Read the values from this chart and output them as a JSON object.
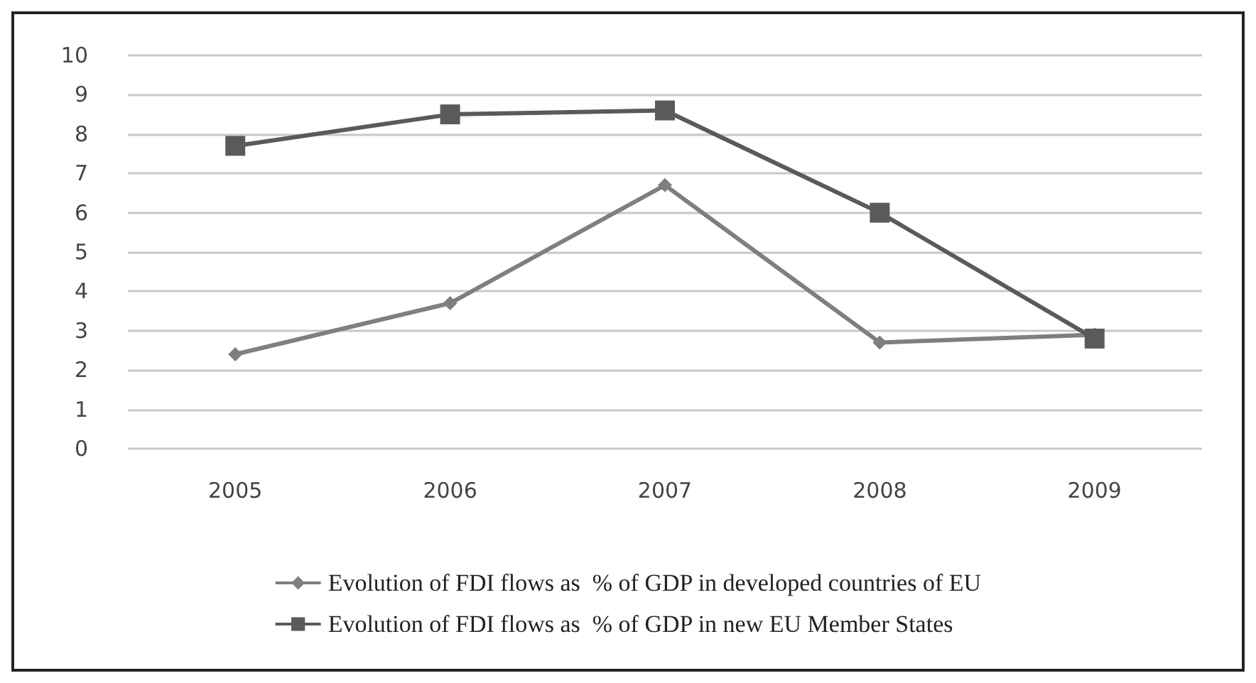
{
  "chart_data": {
    "type": "line",
    "categories": [
      "2005",
      "2006",
      "2007",
      "2008",
      "2009"
    ],
    "series": [
      {
        "name": "Evolution of FDI flows as  % of GDP in developed countries of EU",
        "color": "#7f7f7f",
        "marker": "diamond",
        "values": [
          2.4,
          3.7,
          6.7,
          2.7,
          2.9
        ]
      },
      {
        "name": "Evolution of FDI flows as  % of GDP in new EU Member States",
        "color": "#5a5a5a",
        "marker": "square",
        "values": [
          7.7,
          8.5,
          8.6,
          6.0,
          2.8
        ]
      }
    ],
    "ylim": [
      0,
      10
    ],
    "yticks": [
      0,
      1,
      2,
      3,
      4,
      5,
      6,
      7,
      8,
      9,
      10
    ],
    "grid": "y",
    "legend": "bottom"
  }
}
